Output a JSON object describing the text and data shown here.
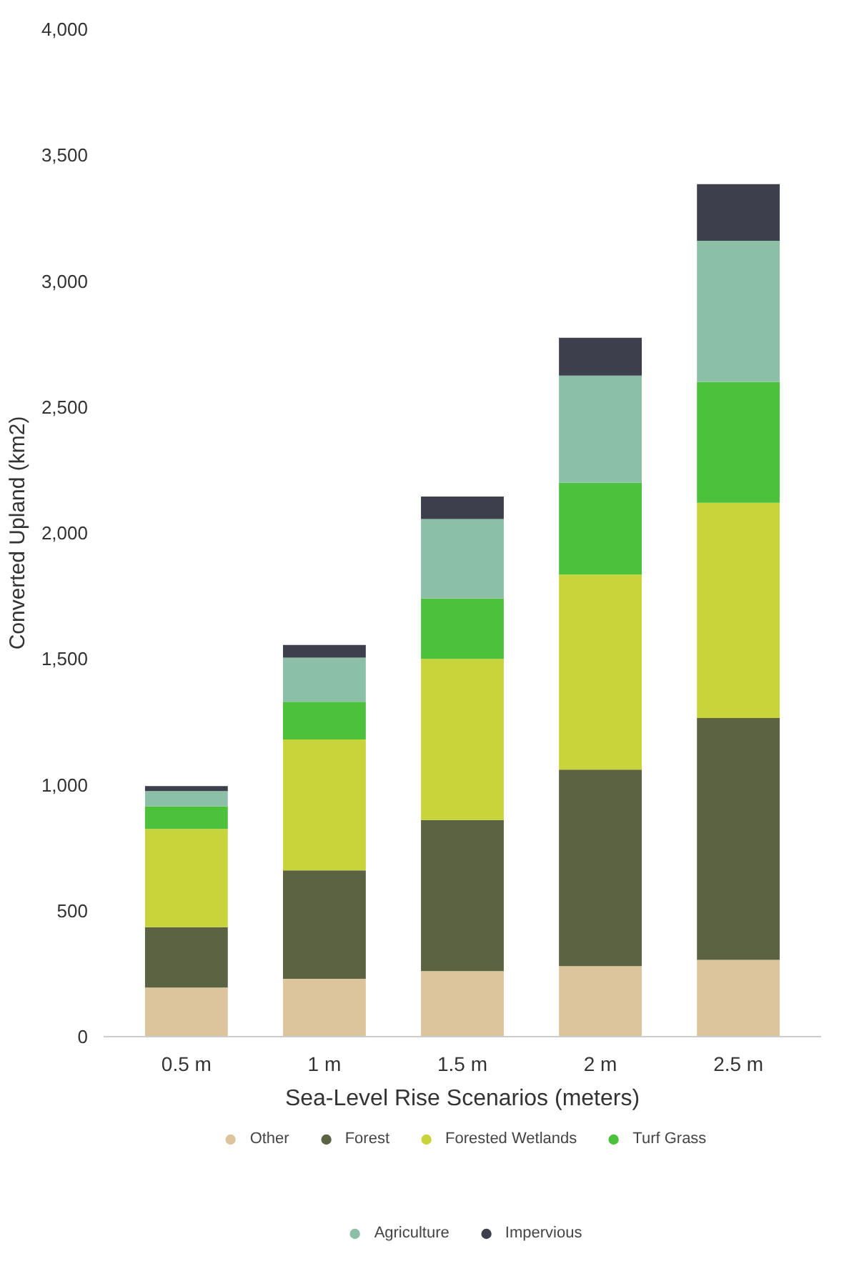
{
  "chart_data": {
    "type": "bar",
    "stacked": true,
    "xlabel": "Sea-Level Rise Scenarios (meters)",
    "ylabel": "Converted Upland (km2)",
    "categories": [
      "0.5 m",
      "1 m",
      "1.5 m",
      "2 m",
      "2.5 m"
    ],
    "series": [
      {
        "name": "Other",
        "color": "#dcc49c",
        "values": [
          195,
          230,
          260,
          280,
          305
        ]
      },
      {
        "name": "Forest",
        "color": "#5b6343",
        "values": [
          240,
          430,
          600,
          780,
          960
        ]
      },
      {
        "name": "Forested Wetlands",
        "color": "#c8d43a",
        "values": [
          390,
          520,
          640,
          775,
          855
        ]
      },
      {
        "name": "Turf Grass",
        "color": "#4cc13c",
        "values": [
          90,
          150,
          240,
          365,
          480
        ]
      },
      {
        "name": "Agriculture",
        "color": "#8cbfa8",
        "values": [
          60,
          175,
          315,
          425,
          560
        ]
      },
      {
        "name": "Impervious",
        "color": "#3e3f4d",
        "values": [
          20,
          50,
          90,
          150,
          225
        ]
      }
    ],
    "ylim": [
      0,
      4000
    ],
    "yticks": [
      0,
      {
        "value": 500,
        "label": "500"
      },
      {
        "value": 1000,
        "label": "1,000"
      },
      {
        "value": 1500,
        "label": "1,500"
      },
      {
        "value": 2000,
        "label": "2,000"
      },
      {
        "value": 2500,
        "label": "2,500"
      },
      {
        "value": 3000,
        "label": "3,000"
      },
      {
        "value": 3500,
        "label": "3,500"
      },
      {
        "value": 4000,
        "label": "4,000"
      }
    ],
    "grid": false,
    "legend": "bottom"
  }
}
